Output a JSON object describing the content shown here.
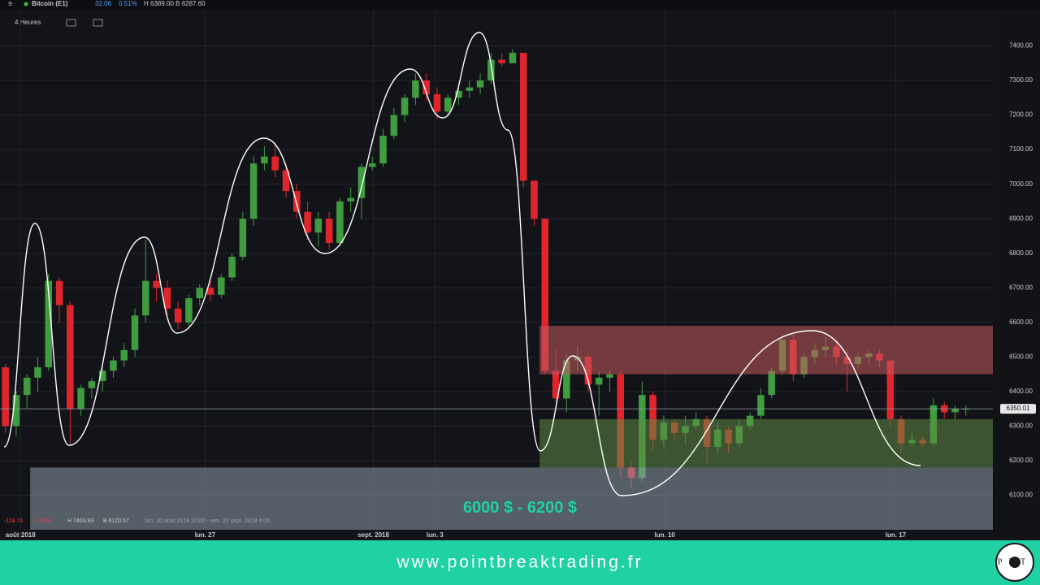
{
  "header": {
    "symbol": "Bitcoin (E1)",
    "change": "32.06",
    "change_pct": "0.51%",
    "range": "H 6389.00 B 6287.60",
    "interval": "4 Heures"
  },
  "info": {
    "change": "-118.74",
    "change_pct": "-1.84%",
    "high": "H 7403.93",
    "low": "B 6120.57",
    "period": "lun. 20 août 2018 20:00 - ven. 21 sept. 2018 4:00"
  },
  "footer": {
    "url": "www.pointbreaktrading.fr",
    "logo": "PBT"
  },
  "chart_data": {
    "type": "candlestick",
    "up_color": "#3f9d3f",
    "down_color": "#e0262c",
    "xlim": [
      0,
      92
    ],
    "xticks": [
      {
        "value": 1.9,
        "label": "août 2018"
      },
      {
        "value": 19,
        "label": "lun. 27"
      },
      {
        "value": 34.6,
        "label": "sept. 2018"
      },
      {
        "value": 40.3,
        "label": "lun. 3"
      },
      {
        "value": 61.6,
        "label": "lun. 10"
      },
      {
        "value": 83,
        "label": "lun. 17"
      }
    ],
    "ylim": [
      6000,
      7500
    ],
    "yticks": [
      {
        "value": 6100,
        "label": "6100.00"
      },
      {
        "value": 6200,
        "label": "6200.00"
      },
      {
        "value": 6300,
        "label": "6300.00"
      },
      {
        "value": 6400,
        "label": "6400.00"
      },
      {
        "value": 6500,
        "label": "6500.00"
      },
      {
        "value": 6600,
        "label": "6600.00"
      },
      {
        "value": 6700,
        "label": "6700.00"
      },
      {
        "value": 6800,
        "label": "6800.00"
      },
      {
        "value": 6900,
        "label": "6900.00"
      },
      {
        "value": 7000,
        "label": "7000.00"
      },
      {
        "value": 7100,
        "label": "7100.00"
      },
      {
        "value": 7200,
        "label": "7200.00"
      },
      {
        "value": 7300,
        "label": "7300.00"
      },
      {
        "value": 7400,
        "label": "7400.00"
      }
    ],
    "grid": true,
    "last_price": {
      "value": 6350.01,
      "label": "6350.01"
    },
    "zones": [
      {
        "from": 50,
        "low": 6450,
        "high": 6590,
        "color": "#c25a5e"
      },
      {
        "from": 50,
        "low": 6180,
        "high": 6320,
        "color": "#5f8a43"
      },
      {
        "from": 2.8,
        "low": 6000,
        "high": 6180,
        "color": "#8e9aa8",
        "label": "6000 $ - 6200 $"
      }
    ],
    "open": [
      6470,
      6300,
      6390,
      6440,
      6470,
      6720,
      6650,
      6350,
      6410,
      6430,
      6460,
      6490,
      6520,
      6620,
      6720,
      6700,
      6640,
      6600,
      6670,
      6700,
      6680,
      6730,
      6790,
      6900,
      7060,
      7080,
      7040,
      6980,
      6920,
      6860,
      6900,
      6830,
      6950,
      6960,
      7050,
      7060,
      7140,
      7200,
      7250,
      7300,
      7260,
      7210,
      7250,
      7270,
      7280,
      7300,
      7360,
      7350,
      7380,
      7010,
      6900,
      6460,
      6380,
      6490,
      6500,
      6420,
      6440,
      6450,
      6180,
      6150,
      6390,
      6260,
      6310,
      6280,
      6300,
      6320,
      6240,
      6290,
      6250,
      6300,
      6330,
      6390,
      6460,
      6550,
      6450,
      6500,
      6520,
      6530,
      6500,
      6480,
      6500,
      6510,
      6490,
      6320,
      6250,
      6260,
      6250,
      6360,
      6340,
      6350
    ],
    "high": [
      6480,
      6400,
      6450,
      6500,
      6740,
      6730,
      6660,
      6420,
      6440,
      6470,
      6500,
      6540,
      6640,
      6840,
      6740,
      6720,
      6660,
      6680,
      6710,
      6720,
      6740,
      6800,
      6920,
      7080,
      7110,
      7120,
      7060,
      7000,
      6950,
      6920,
      6920,
      6960,
      6990,
      7060,
      7080,
      7160,
      7220,
      7260,
      7320,
      7320,
      7280,
      7260,
      7290,
      7300,
      7320,
      7380,
      7380,
      7390,
      7380,
      7010,
      6900,
      6520,
      6510,
      6530,
      6510,
      6460,
      6460,
      6460,
      6200,
      6430,
      6400,
      6330,
      6320,
      6330,
      6340,
      6330,
      6310,
      6300,
      6320,
      6340,
      6410,
      6470,
      6560,
      6570,
      6510,
      6540,
      6560,
      6550,
      6520,
      6510,
      6520,
      6520,
      6490,
      6330,
      6280,
      6270,
      6380,
      6370,
      6360,
      6360
    ],
    "low": [
      6280,
      6270,
      6350,
      6400,
      6460,
      6600,
      6250,
      6330,
      6380,
      6400,
      6440,
      6470,
      6500,
      6600,
      6660,
      6620,
      6580,
      6590,
      6650,
      6660,
      6670,
      6720,
      6780,
      6880,
      7040,
      7020,
      6960,
      6900,
      6840,
      6820,
      6810,
      6820,
      6920,
      6900,
      7040,
      7050,
      7130,
      7180,
      7230,
      7240,
      7190,
      7200,
      7230,
      7250,
      7260,
      7290,
      7340,
      7350,
      6990,
      6880,
      6450,
      6370,
      6340,
      6460,
      6400,
      6330,
      6400,
      6150,
      6120,
      6140,
      6230,
      6240,
      6260,
      6250,
      6290,
      6190,
      6220,
      6220,
      6240,
      6290,
      6320,
      6380,
      6450,
      6430,
      6440,
      6480,
      6500,
      6480,
      6400,
      6470,
      6480,
      6470,
      6300,
      6220,
      6240,
      6240,
      6240,
      6320,
      6320,
      6330
    ],
    "close": [
      6300,
      6390,
      6440,
      6470,
      6720,
      6650,
      6350,
      6410,
      6430,
      6460,
      6490,
      6520,
      6620,
      6720,
      6700,
      6640,
      6600,
      6670,
      6700,
      6680,
      6730,
      6790,
      6900,
      7060,
      7080,
      7040,
      6980,
      6920,
      6860,
      6900,
      6830,
      6950,
      6960,
      7050,
      7060,
      7140,
      7200,
      7250,
      7300,
      7260,
      7210,
      7250,
      7270,
      7280,
      7300,
      7360,
      7350,
      7380,
      7010,
      6900,
      6460,
      6380,
      6490,
      6500,
      6420,
      6440,
      6450,
      6180,
      6150,
      6390,
      6260,
      6310,
      6280,
      6300,
      6320,
      6240,
      6290,
      6250,
      6300,
      6330,
      6390,
      6460,
      6550,
      6450,
      6500,
      6520,
      6530,
      6500,
      6480,
      6500,
      6510,
      6490,
      6320,
      6250,
      6260,
      6250,
      6360,
      6340,
      6350,
      6350
    ]
  }
}
